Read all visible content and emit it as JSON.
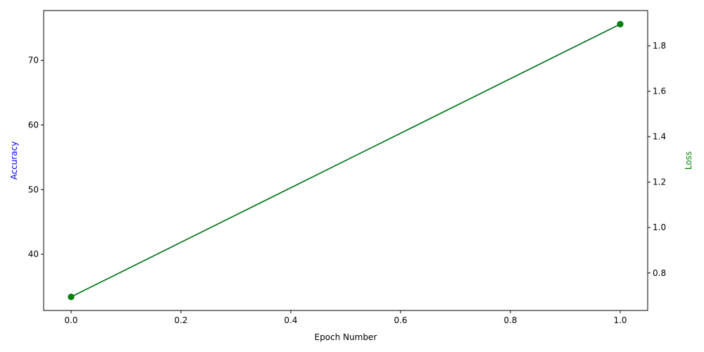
{
  "chart_data": {
    "type": "line",
    "title": "",
    "xlabel": "Epoch Number",
    "xlim": [
      -0.05,
      1.05
    ],
    "x_ticks": [
      "0.0",
      "0.2",
      "0.4",
      "0.6",
      "0.8",
      "1.0"
    ],
    "x": [
      0,
      1
    ],
    "grid": false,
    "legend": "none",
    "series": [
      {
        "axis": "left",
        "ylabel": "Accuracy",
        "color": "#0000ff",
        "marker": "circle",
        "values": [
          33.4,
          75.6
        ],
        "ylim": [
          31.3,
          77.7
        ],
        "ticks": [
          "40",
          "50",
          "60",
          "70"
        ]
      },
      {
        "axis": "right",
        "ylabel": "Loss",
        "color": "#008000",
        "marker": "circle",
        "values": [
          0.695,
          1.895
        ],
        "ylim": [
          0.635,
          1.955
        ],
        "ticks": [
          "0.8",
          "1.0",
          "1.2",
          "1.4",
          "1.6",
          "1.8"
        ]
      }
    ]
  }
}
